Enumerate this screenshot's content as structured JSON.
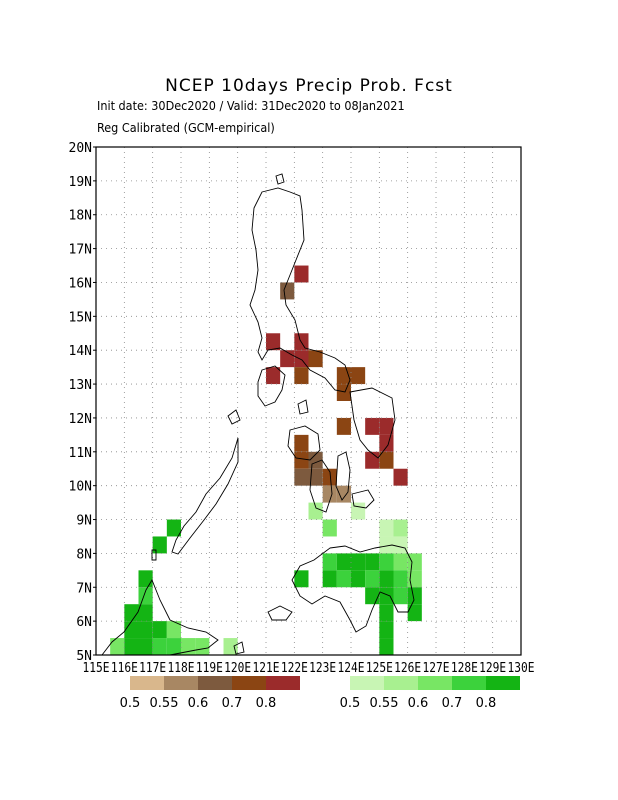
{
  "title": "NCEP 10days Precip Prob. Fcst",
  "subtitle_1": "Init date: 30Dec2020 / Valid: 31Dec2020 to 08Jan2021",
  "subtitle_2": "Reg Calibrated (GCM-empirical)",
  "axes": {
    "lon_range": [
      115,
      130
    ],
    "lat_range": [
      5,
      20
    ],
    "lon_labels": [
      "115E",
      "116E",
      "117E",
      "118E",
      "119E",
      "120E",
      "121E",
      "122E",
      "123E",
      "124E",
      "125E",
      "126E",
      "127E",
      "128E",
      "129E",
      "130E"
    ],
    "lat_labels": [
      "5N",
      "6N",
      "7N",
      "8N",
      "9N",
      "10N",
      "11N",
      "12N",
      "13N",
      "14N",
      "15N",
      "16N",
      "17N",
      "18N",
      "19N",
      "20N"
    ],
    "grid": true
  },
  "legend": {
    "dry": {
      "colors": [
        "#d9b78c",
        "#a88763",
        "#7d5a3e",
        "#8b4513",
        "#9b2b2b"
      ],
      "labels": [
        "0.5",
        "0.55",
        "0.6",
        "0.7",
        "0.8"
      ]
    },
    "wet": {
      "colors": [
        "#c8f5b4",
        "#a8f090",
        "#78e664",
        "#3cd23c",
        "#14b414"
      ],
      "labels": [
        "0.5",
        "0.55",
        "0.6",
        "0.7",
        "0.8"
      ]
    }
  },
  "chart_data": {
    "type": "heatmap",
    "cell_size_deg": 0.5,
    "cells_note": "lon/lat of cell lower-left corner; cat: dry/wet class index 0-4",
    "dry_cells": [
      {
        "lon": 122.0,
        "lat": 16.0,
        "c": 4
      },
      {
        "lon": 121.5,
        "lat": 15.5,
        "c": 2
      },
      {
        "lon": 121.0,
        "lat": 14.0,
        "c": 4
      },
      {
        "lon": 122.0,
        "lat": 14.0,
        "c": 4
      },
      {
        "lon": 121.5,
        "lat": 13.5,
        "c": 4
      },
      {
        "lon": 122.0,
        "lat": 13.5,
        "c": 4
      },
      {
        "lon": 122.5,
        "lat": 13.5,
        "c": 3
      },
      {
        "lon": 121.0,
        "lat": 13.0,
        "c": 4
      },
      {
        "lon": 122.0,
        "lat": 13.0,
        "c": 3
      },
      {
        "lon": 123.5,
        "lat": 13.0,
        "c": 3
      },
      {
        "lon": 124.0,
        "lat": 13.0,
        "c": 3
      },
      {
        "lon": 123.5,
        "lat": 12.5,
        "c": 3
      },
      {
        "lon": 123.5,
        "lat": 11.5,
        "c": 3
      },
      {
        "lon": 124.5,
        "lat": 11.5,
        "c": 4
      },
      {
        "lon": 125.0,
        "lat": 11.5,
        "c": 4
      },
      {
        "lon": 122.0,
        "lat": 11.0,
        "c": 3
      },
      {
        "lon": 125.0,
        "lat": 11.0,
        "c": 4
      },
      {
        "lon": 122.0,
        "lat": 10.5,
        "c": 3
      },
      {
        "lon": 122.5,
        "lat": 10.5,
        "c": 2
      },
      {
        "lon": 124.5,
        "lat": 10.5,
        "c": 4
      },
      {
        "lon": 125.0,
        "lat": 10.5,
        "c": 3
      },
      {
        "lon": 122.0,
        "lat": 10.0,
        "c": 2
      },
      {
        "lon": 122.5,
        "lat": 10.0,
        "c": 2
      },
      {
        "lon": 123.0,
        "lat": 10.0,
        "c": 3
      },
      {
        "lon": 125.5,
        "lat": 10.0,
        "c": 4
      },
      {
        "lon": 123.0,
        "lat": 9.5,
        "c": 1
      },
      {
        "lon": 123.5,
        "lat": 9.5,
        "c": 1
      }
    ],
    "wet_cells": [
      {
        "lon": 122.5,
        "lat": 9.0,
        "c": 1
      },
      {
        "lon": 124.0,
        "lat": 9.0,
        "c": 0
      },
      {
        "lon": 123.0,
        "lat": 8.5,
        "c": 2
      },
      {
        "lon": 125.0,
        "lat": 8.5,
        "c": 0
      },
      {
        "lon": 125.5,
        "lat": 8.5,
        "c": 1
      },
      {
        "lon": 117.5,
        "lat": 8.5,
        "c": 4
      },
      {
        "lon": 117.0,
        "lat": 8.0,
        "c": 4
      },
      {
        "lon": 125.0,
        "lat": 8.0,
        "c": 0
      },
      {
        "lon": 125.5,
        "lat": 8.0,
        "c": 0
      },
      {
        "lon": 123.0,
        "lat": 7.5,
        "c": 3
      },
      {
        "lon": 123.5,
        "lat": 7.5,
        "c": 4
      },
      {
        "lon": 124.0,
        "lat": 7.5,
        "c": 4
      },
      {
        "lon": 124.5,
        "lat": 7.5,
        "c": 4
      },
      {
        "lon": 125.0,
        "lat": 7.5,
        "c": 3
      },
      {
        "lon": 125.5,
        "lat": 7.5,
        "c": 2
      },
      {
        "lon": 126.0,
        "lat": 7.5,
        "c": 2
      },
      {
        "lon": 122.0,
        "lat": 7.0,
        "c": 4
      },
      {
        "lon": 123.0,
        "lat": 7.0,
        "c": 4
      },
      {
        "lon": 123.5,
        "lat": 7.0,
        "c": 3
      },
      {
        "lon": 124.0,
        "lat": 7.0,
        "c": 4
      },
      {
        "lon": 124.5,
        "lat": 7.0,
        "c": 3
      },
      {
        "lon": 125.0,
        "lat": 7.0,
        "c": 4
      },
      {
        "lon": 125.5,
        "lat": 7.0,
        "c": 3
      },
      {
        "lon": 126.0,
        "lat": 7.0,
        "c": 2
      },
      {
        "lon": 116.5,
        "lat": 7.0,
        "c": 4
      },
      {
        "lon": 124.5,
        "lat": 6.5,
        "c": 4
      },
      {
        "lon": 125.0,
        "lat": 6.5,
        "c": 4
      },
      {
        "lon": 125.5,
        "lat": 6.5,
        "c": 3
      },
      {
        "lon": 126.0,
        "lat": 6.5,
        "c": 4
      },
      {
        "lon": 116.5,
        "lat": 6.5,
        "c": 3
      },
      {
        "lon": 125.0,
        "lat": 6.0,
        "c": 4
      },
      {
        "lon": 126.0,
        "lat": 6.0,
        "c": 4
      },
      {
        "lon": 116.0,
        "lat": 6.0,
        "c": 4
      },
      {
        "lon": 116.5,
        "lat": 6.0,
        "c": 4
      },
      {
        "lon": 125.0,
        "lat": 5.5,
        "c": 4
      },
      {
        "lon": 116.0,
        "lat": 5.5,
        "c": 4
      },
      {
        "lon": 116.5,
        "lat": 5.5,
        "c": 4
      },
      {
        "lon": 117.0,
        "lat": 5.5,
        "c": 4
      },
      {
        "lon": 117.5,
        "lat": 5.5,
        "c": 2
      },
      {
        "lon": 125.0,
        "lat": 5.0,
        "c": 4
      },
      {
        "lon": 115.5,
        "lat": 5.0,
        "c": 2
      },
      {
        "lon": 116.0,
        "lat": 5.0,
        "c": 4
      },
      {
        "lon": 116.5,
        "lat": 5.0,
        "c": 4
      },
      {
        "lon": 117.0,
        "lat": 5.0,
        "c": 3
      },
      {
        "lon": 117.5,
        "lat": 5.0,
        "c": 3
      },
      {
        "lon": 118.0,
        "lat": 5.0,
        "c": 2
      },
      {
        "lon": 118.5,
        "lat": 5.0,
        "c": 2
      },
      {
        "lon": 119.5,
        "lat": 5.0,
        "c": 1
      }
    ]
  }
}
